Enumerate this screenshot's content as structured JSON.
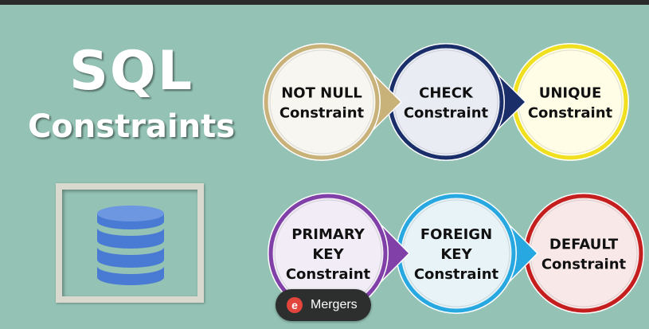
{
  "title": {
    "line1": "SQL",
    "line2": "Constraints"
  },
  "icons": {
    "database": "database-icon",
    "brand": "mergers-logo-icon"
  },
  "constraints_row1": [
    {
      "lines": [
        "NOT NULL",
        "Constraint"
      ],
      "fill": "#f8f6f0",
      "ring": "#c8b27a"
    },
    {
      "lines": [
        "CHECK",
        "Constraint"
      ],
      "fill": "#e9ecf3",
      "ring": "#1a2e6a"
    },
    {
      "lines": [
        "UNIQUE",
        "Constraint"
      ],
      "fill": "#fffde6",
      "ring": "#f0e020"
    }
  ],
  "constraints_row2": [
    {
      "lines": [
        "PRIMARY",
        "KEY",
        "Constraint"
      ],
      "fill": "#f1ecf5",
      "ring": "#8040a8"
    },
    {
      "lines": [
        "FOREIGN",
        "KEY",
        "Constraint"
      ],
      "fill": "#e8f3f8",
      "ring": "#28a8e0"
    },
    {
      "lines": [
        "DEFAULT",
        "Constraint"
      ],
      "fill": "#f8e8e8",
      "ring": "#c41e1e"
    }
  ],
  "badge": {
    "label": "Mergers"
  },
  "colors": {
    "background": "#94c3b5",
    "title_text": "#ffffff",
    "database_blue": "#4a7bd4",
    "label_text": "#111111"
  }
}
